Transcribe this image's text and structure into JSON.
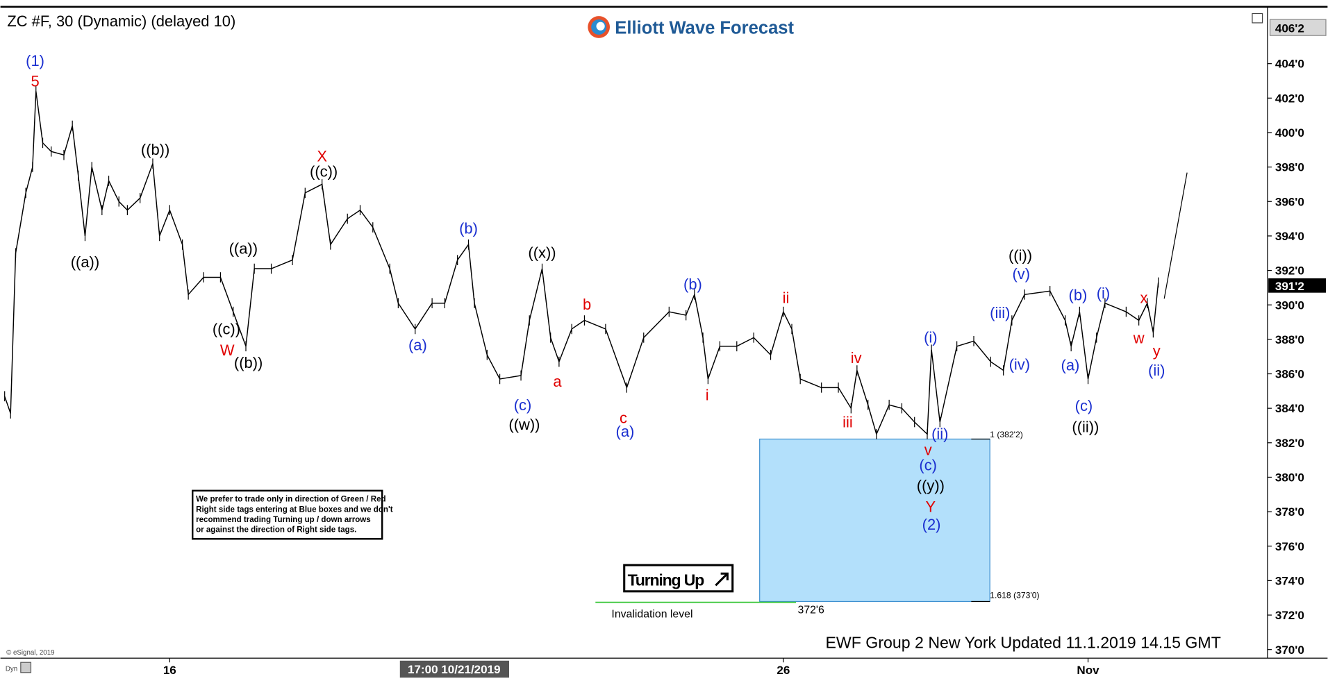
{
  "chart_data": {
    "type": "line",
    "title": "ZC #F, 30 (Dynamic) (delayed 10)",
    "brand": "Elliott Wave Forecast",
    "footer": "EWF Group 2 New York Updated 11.1.2019 14.15 GMT",
    "copyright": "© eSignal, 2019",
    "corner_label": "Dyn",
    "crosshair_label": "17:00 10/21/2019",
    "top_price_label": "406'2",
    "last_price_label": "391'2",
    "note": [
      "We prefer to trade only in direction of Green / Red",
      "Right side tags entering at Blue boxes and we don't",
      "recommend trading Turning up / down arrows",
      "or against the direction of Right side tags."
    ],
    "box_top_label": "1 (382'2)",
    "box_bottom_label": "1.618 (373'0)",
    "invalidation_value_label": "372'6",
    "invalidation_label": "Invalidation level",
    "turning_label": "Turning Up",
    "color": "#000000",
    "categories": [
      null,
      null,
      null,
      null,
      null,
      null,
      null,
      null,
      null,
      null,
      null,
      null,
      null,
      null,
      null,
      null,
      null,
      null,
      null,
      null,
      "16",
      null,
      null,
      null,
      null,
      null,
      null,
      null,
      null,
      null,
      null,
      null,
      null,
      null,
      null,
      null,
      null,
      null,
      null,
      null,
      null,
      null,
      null,
      null,
      null,
      null,
      null,
      null,
      null,
      null,
      null,
      null,
      null,
      null,
      null,
      null,
      null,
      null,
      null,
      null,
      null,
      null,
      null,
      null,
      null,
      "26",
      null,
      null,
      null,
      null,
      null,
      null,
      null,
      null,
      null,
      null,
      null,
      null,
      null,
      null,
      null,
      null,
      null,
      null,
      null,
      null,
      null,
      null,
      null,
      null,
      "Nov",
      null,
      null,
      null,
      null,
      null,
      null,
      null
    ],
    "values": [
      384.7,
      383.7,
      393.0,
      396.5,
      398.0,
      402.4,
      399.4,
      398.9,
      398.7,
      400.4,
      397.5,
      394.0,
      398.0,
      395.5,
      397.2,
      396.0,
      395.5,
      396.2,
      398.2,
      394.0,
      395.5,
      393.5,
      390.6,
      391.6,
      391.6,
      389.6,
      387.6,
      392.1,
      392.1,
      392.6,
      396.5,
      397.0,
      393.5,
      395.0,
      395.5,
      394.5,
      392.1,
      390.1,
      388.6,
      390.1,
      390.1,
      392.6,
      393.5,
      390.1,
      387.1,
      385.7,
      385.9,
      389.1,
      392.1,
      388.1,
      386.7,
      388.6,
      389.1,
      388.6,
      385.2,
      388.1,
      389.6,
      389.4,
      390.6,
      388.1,
      385.7,
      387.6,
      387.6,
      388.1,
      387.1,
      389.6,
      388.6,
      385.7,
      385.2,
      385.2,
      384.0,
      386.2,
      384.2,
      382.5,
      384.2,
      384.0,
      383.2,
      382.5,
      387.4,
      383.2,
      387.6,
      387.9,
      386.7,
      386.2,
      389.1,
      390.6,
      390.8,
      389.1,
      387.6,
      389.6,
      385.7,
      388.1,
      390.1,
      389.6,
      389.1,
      390.1,
      388.4,
      391.3
    ],
    "ylim": [
      369.5,
      407.3
    ],
    "yticks": [
      {
        "value": 370,
        "label": "370'0"
      },
      {
        "value": 372,
        "label": "372'0"
      },
      {
        "value": 374,
        "label": "374'0"
      },
      {
        "value": 376,
        "label": "376'0"
      },
      {
        "value": 378,
        "label": "378'0"
      },
      {
        "value": 380,
        "label": "380'0"
      },
      {
        "value": 382,
        "label": "382'0"
      },
      {
        "value": 384,
        "label": "384'0"
      },
      {
        "value": 386,
        "label": "386'0"
      },
      {
        "value": 388,
        "label": "388'0"
      },
      {
        "value": 390,
        "label": "390'0"
      },
      {
        "value": 392,
        "label": "392'0"
      },
      {
        "value": 394,
        "label": "394'0"
      },
      {
        "value": 396,
        "label": "396'0"
      },
      {
        "value": 398,
        "label": "398'0"
      },
      {
        "value": 400,
        "label": "400'0"
      },
      {
        "value": 402,
        "label": "402'0"
      },
      {
        "value": 404,
        "label": "404'0"
      }
    ],
    "grid": false,
    "annotations": [
      {
        "text": "(1)",
        "color": "#1a2fd0"
      },
      {
        "text": "5",
        "color": "#e00000"
      },
      {
        "text": "((a))",
        "color": "#000000"
      },
      {
        "text": "((b))",
        "color": "#000000"
      },
      {
        "text": "X",
        "color": "#e00000"
      },
      {
        "text": "((c))",
        "color": "#000000"
      },
      {
        "text": "((a))",
        "color": "#000000"
      },
      {
        "text": "((c))",
        "color": "#000000"
      },
      {
        "text": "W",
        "color": "#e00000"
      },
      {
        "text": "((b))",
        "color": "#000000"
      },
      {
        "text": "(b)",
        "color": "#1a2fd0"
      },
      {
        "text": "(a)",
        "color": "#1a2fd0"
      },
      {
        "text": "(c)",
        "color": "#1a2fd0"
      },
      {
        "text": "((w))",
        "color": "#000000"
      },
      {
        "text": "((x))",
        "color": "#000000"
      },
      {
        "text": "b",
        "color": "#e00000"
      },
      {
        "text": "a",
        "color": "#e00000"
      },
      {
        "text": "c",
        "color": "#e00000"
      },
      {
        "text": "(a)",
        "color": "#1a2fd0"
      },
      {
        "text": "(b)",
        "color": "#1a2fd0"
      },
      {
        "text": "i",
        "color": "#e00000"
      },
      {
        "text": "ii",
        "color": "#e00000"
      },
      {
        "text": "iv",
        "color": "#e00000"
      },
      {
        "text": "iii",
        "color": "#e00000"
      },
      {
        "text": "(i)",
        "color": "#1a2fd0"
      },
      {
        "text": "(ii)",
        "color": "#1a2fd0"
      },
      {
        "text": "v",
        "color": "#e00000"
      },
      {
        "text": "(c)",
        "color": "#1a2fd0"
      },
      {
        "text": "((y))",
        "color": "#000000"
      },
      {
        "text": "Y",
        "color": "#e00000"
      },
      {
        "text": "(2)",
        "color": "#1a2fd0"
      },
      {
        "text": "(iii)",
        "color": "#1a2fd0"
      },
      {
        "text": "((i))",
        "color": "#000000"
      },
      {
        "text": "(v)",
        "color": "#1a2fd0"
      },
      {
        "text": "(iv)",
        "color": "#1a2fd0"
      },
      {
        "text": "(b)",
        "color": "#1a2fd0"
      },
      {
        "text": "(a)",
        "color": "#1a2fd0"
      },
      {
        "text": "(c)",
        "color": "#1a2fd0"
      },
      {
        "text": "((ii))",
        "color": "#000000"
      },
      {
        "text": "(i)",
        "color": "#1a2fd0"
      },
      {
        "text": "x",
        "color": "#e00000"
      },
      {
        "text": "w",
        "color": "#e00000"
      },
      {
        "text": "y",
        "color": "#e00000"
      },
      {
        "text": "(ii)",
        "color": "#1a2fd0"
      }
    ]
  }
}
